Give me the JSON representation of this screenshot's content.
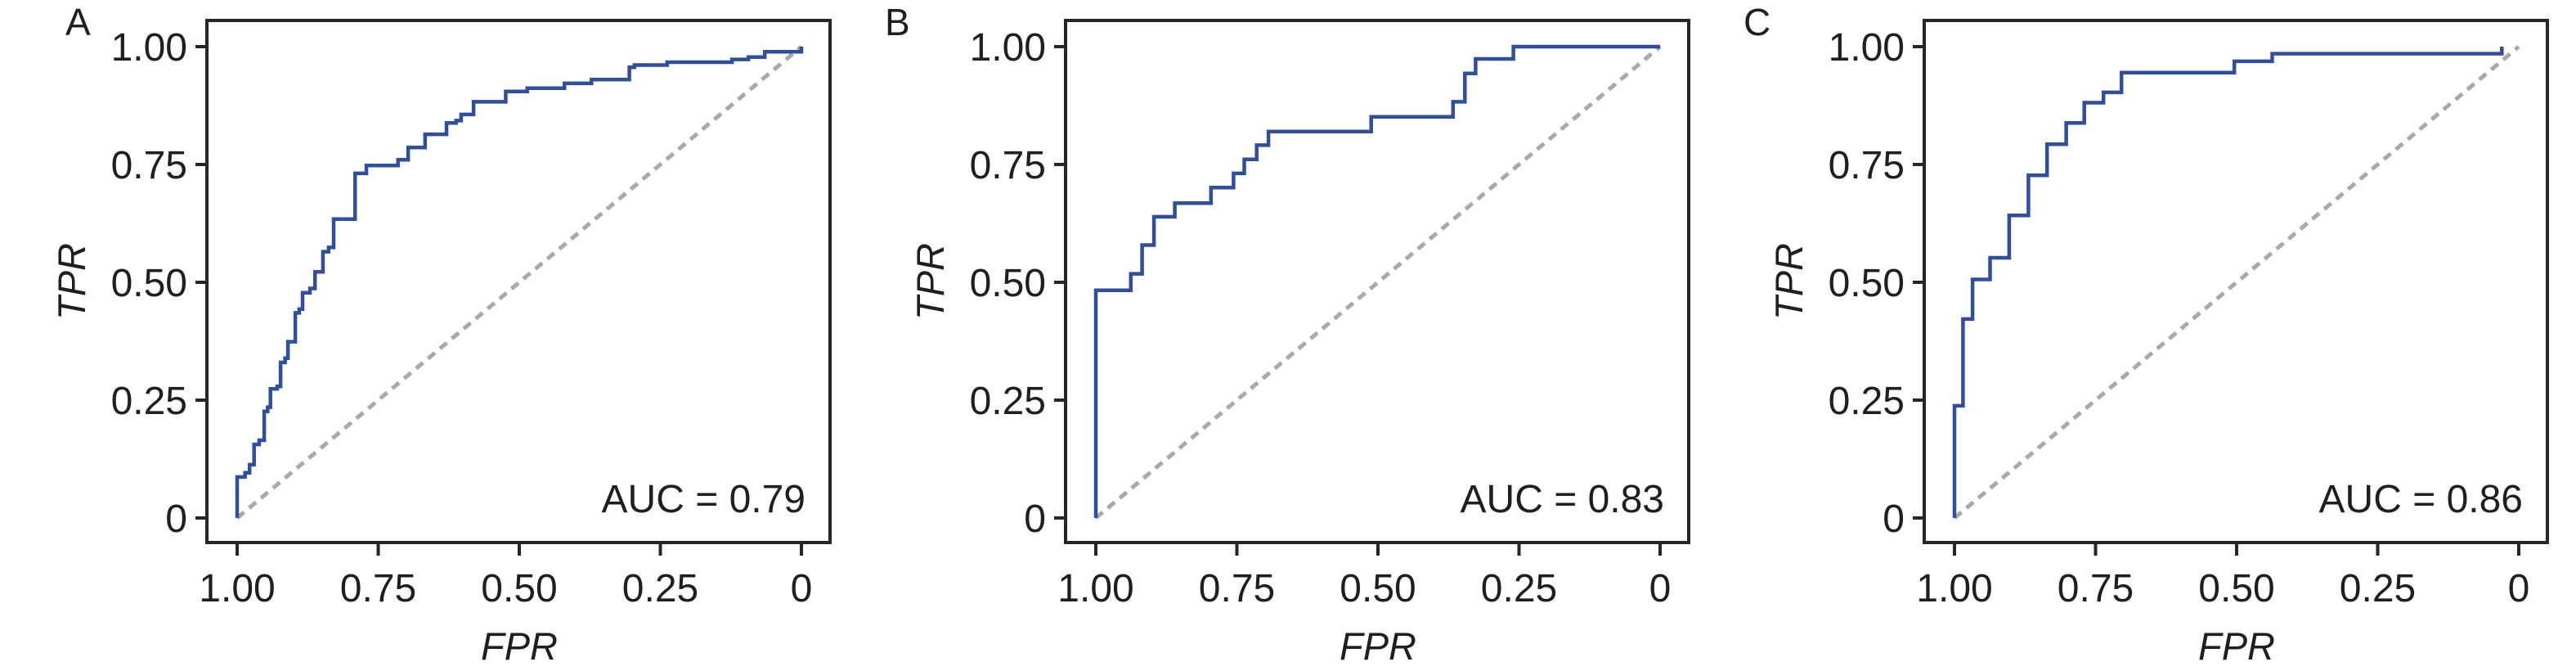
{
  "colors": {
    "curve": "#2F4F9E",
    "chance_line": "#A9A9A9",
    "axis": "#262626",
    "text": "#1F1F1F",
    "background": "#FFFFFF"
  },
  "chart_data": [
    {
      "type": "line",
      "variant": "roc_step_curve",
      "panel_letter": "A",
      "xlabel": "FPR",
      "ylabel": "TPR",
      "annotation": "AUC = 0.79",
      "auc": 0.79,
      "grid": false,
      "legend": "none",
      "x_axis": {
        "label": "FPR",
        "reversed": true,
        "range": [
          1.0,
          0.0
        ],
        "ticks": [
          {
            "value": 1.0,
            "label": "1.00"
          },
          {
            "value": 0.75,
            "label": "0.75"
          },
          {
            "value": 0.5,
            "label": "0.50"
          },
          {
            "value": 0.25,
            "label": "0.25"
          },
          {
            "value": 0.0,
            "label": "0"
          }
        ]
      },
      "y_axis": {
        "label": "TPR",
        "range": [
          0.0,
          1.0
        ],
        "ticks": [
          {
            "value": 0.0,
            "label": "0"
          },
          {
            "value": 0.25,
            "label": "0.25"
          },
          {
            "value": 0.5,
            "label": "0.50"
          },
          {
            "value": 0.75,
            "label": "0.75"
          },
          {
            "value": 1.0,
            "label": "1.00"
          }
        ]
      },
      "chance_line": {
        "from": [
          1.0,
          0.0
        ],
        "to": [
          0.0,
          1.0
        ],
        "style": "dashed"
      },
      "series": [
        {
          "name": "ROC curve",
          "points": [
            [
              1.0,
              0.0
            ],
            [
              1.0,
              0.087
            ],
            [
              0.986,
              0.096
            ],
            [
              0.978,
              0.113
            ],
            [
              0.97,
              0.156
            ],
            [
              0.961,
              0.165
            ],
            [
              0.952,
              0.226
            ],
            [
              0.946,
              0.235
            ],
            [
              0.941,
              0.274
            ],
            [
              0.929,
              0.279
            ],
            [
              0.923,
              0.33
            ],
            [
              0.915,
              0.339
            ],
            [
              0.91,
              0.374
            ],
            [
              0.897,
              0.435
            ],
            [
              0.89,
              0.443
            ],
            [
              0.884,
              0.478
            ],
            [
              0.871,
              0.487
            ],
            [
              0.862,
              0.522
            ],
            [
              0.848,
              0.565
            ],
            [
              0.838,
              0.574
            ],
            [
              0.829,
              0.634
            ],
            [
              0.791,
              0.731
            ],
            [
              0.771,
              0.748
            ],
            [
              0.715,
              0.76
            ],
            [
              0.697,
              0.786
            ],
            [
              0.667,
              0.814
            ],
            [
              0.629,
              0.838
            ],
            [
              0.612,
              0.843
            ],
            [
              0.603,
              0.856
            ],
            [
              0.581,
              0.883
            ],
            [
              0.524,
              0.905
            ],
            [
              0.486,
              0.912
            ],
            [
              0.42,
              0.922
            ],
            [
              0.372,
              0.93
            ],
            [
              0.305,
              0.956
            ],
            [
              0.296,
              0.961
            ],
            [
              0.238,
              0.967
            ],
            [
              0.123,
              0.973
            ],
            [
              0.094,
              0.978
            ],
            [
              0.065,
              0.989
            ],
            [
              0.0,
              1.0
            ]
          ]
        }
      ]
    },
    {
      "type": "line",
      "variant": "roc_step_curve",
      "panel_letter": "B",
      "xlabel": "FPR",
      "ylabel": "TPR",
      "annotation": "AUC = 0.83",
      "auc": 0.83,
      "grid": false,
      "legend": "none",
      "x_axis": {
        "label": "FPR",
        "reversed": true,
        "range": [
          1.0,
          0.0
        ],
        "ticks": [
          {
            "value": 1.0,
            "label": "1.00"
          },
          {
            "value": 0.75,
            "label": "0.75"
          },
          {
            "value": 0.5,
            "label": "0.50"
          },
          {
            "value": 0.25,
            "label": "0.25"
          },
          {
            "value": 0.0,
            "label": "0"
          }
        ]
      },
      "y_axis": {
        "label": "TPR",
        "range": [
          0.0,
          1.0
        ],
        "ticks": [
          {
            "value": 0.0,
            "label": "0"
          },
          {
            "value": 0.25,
            "label": "0.25"
          },
          {
            "value": 0.5,
            "label": "0.50"
          },
          {
            "value": 0.75,
            "label": "0.75"
          },
          {
            "value": 1.0,
            "label": "1.00"
          }
        ]
      },
      "chance_line": {
        "from": [
          1.0,
          0.0
        ],
        "to": [
          0.0,
          1.0
        ],
        "style": "dashed"
      },
      "series": [
        {
          "name": "ROC curve",
          "points": [
            [
              1.0,
              0.0
            ],
            [
              1.0,
              0.483
            ],
            [
              0.938,
              0.518
            ],
            [
              0.918,
              0.579
            ],
            [
              0.897,
              0.639
            ],
            [
              0.86,
              0.668
            ],
            [
              0.796,
              0.701
            ],
            [
              0.756,
              0.731
            ],
            [
              0.737,
              0.761
            ],
            [
              0.715,
              0.791
            ],
            [
              0.694,
              0.82
            ],
            [
              0.512,
              0.851
            ],
            [
              0.367,
              0.883
            ],
            [
              0.346,
              0.943
            ],
            [
              0.327,
              0.974
            ],
            [
              0.26,
              1.0
            ],
            [
              0.0,
              1.0
            ]
          ]
        }
      ]
    },
    {
      "type": "line",
      "variant": "roc_step_curve",
      "panel_letter": "C",
      "xlabel": "FPR",
      "ylabel": "TPR",
      "annotation": "AUC = 0.86",
      "auc": 0.86,
      "grid": false,
      "legend": "none",
      "x_axis": {
        "label": "FPR",
        "reversed": true,
        "range": [
          1.0,
          0.0
        ],
        "ticks": [
          {
            "value": 1.0,
            "label": "1.00"
          },
          {
            "value": 0.75,
            "label": "0.75"
          },
          {
            "value": 0.5,
            "label": "0.50"
          },
          {
            "value": 0.25,
            "label": "0.25"
          },
          {
            "value": 0.0,
            "label": "0"
          }
        ]
      },
      "y_axis": {
        "label": "TPR",
        "range": [
          0.0,
          1.0
        ],
        "ticks": [
          {
            "value": 0.0,
            "label": "0"
          },
          {
            "value": 0.25,
            "label": "0.25"
          },
          {
            "value": 0.5,
            "label": "0.50"
          },
          {
            "value": 0.75,
            "label": "0.75"
          },
          {
            "value": 1.0,
            "label": "1.00"
          }
        ]
      },
      "chance_line": {
        "from": [
          1.0,
          0.0
        ],
        "to": [
          0.0,
          1.0
        ],
        "style": "dashed"
      },
      "series": [
        {
          "name": "ROC curve",
          "points": [
            [
              1.0,
              0.0
            ],
            [
              1.0,
              0.238
            ],
            [
              0.985,
              0.422
            ],
            [
              0.968,
              0.506
            ],
            [
              0.937,
              0.552
            ],
            [
              0.903,
              0.642
            ],
            [
              0.869,
              0.727
            ],
            [
              0.836,
              0.793
            ],
            [
              0.802,
              0.838
            ],
            [
              0.77,
              0.881
            ],
            [
              0.736,
              0.903
            ],
            [
              0.704,
              0.945
            ],
            [
              0.504,
              0.969
            ],
            [
              0.437,
              0.985
            ],
            [
              0.03,
              1.0
            ]
          ]
        }
      ]
    }
  ]
}
